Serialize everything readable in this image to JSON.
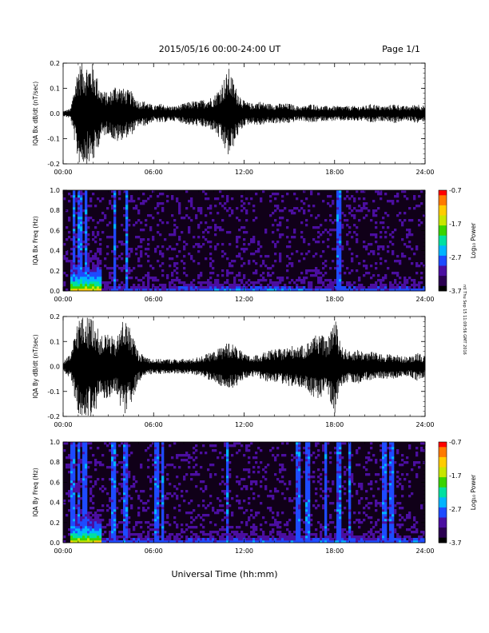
{
  "header": {
    "date_range": "2015/05/16  00:00-24:00 UT",
    "page": "Page 1/1"
  },
  "footer": {
    "xlabel": "Universal Time (hh:mm)"
  },
  "sidebar": {
    "stamp": "ntl Thu Sep 15 11:09:56 GMT 2016"
  },
  "colorbar": {
    "label": "Log₁₀ Power",
    "ticks": [
      "-0.7",
      "-1.7",
      "-2.7",
      "-3.7"
    ],
    "values": [
      -0.7,
      -1.7,
      -2.7,
      -3.7
    ],
    "range": [
      -3.7,
      -0.7
    ],
    "colors": [
      "#000000",
      "#2a0050",
      "#4b0ea0",
      "#1e4bff",
      "#00b4ff",
      "#00e0a0",
      "#3ad400",
      "#c8e600",
      "#ffcc00",
      "#ff7a00",
      "#ff0000"
    ]
  },
  "chart_data": [
    {
      "type": "line",
      "ylabel": "IQA Bx dB/dt (nT/sec)",
      "x_ticks": [
        "00:00",
        "06:00",
        "12:00",
        "18:00",
        "24:00"
      ],
      "y_ticks": [
        "0.2",
        "0.1",
        "0.0",
        "-0.1",
        "-0.2"
      ],
      "xlim": [
        0,
        24
      ],
      "ylim": [
        -0.2,
        0.2
      ],
      "series": [
        {
          "x": [
            0,
            0.5,
            1,
            1.5,
            2,
            2.5,
            3,
            3.5,
            4,
            4.5,
            5,
            5.5,
            6,
            6.5,
            7,
            7.5,
            8,
            8.5,
            9,
            9.5,
            10,
            10.5,
            11,
            11.5,
            12,
            12.5,
            13,
            13.5,
            14,
            14.5,
            15,
            15.5,
            16,
            16.5,
            17,
            17.5,
            18,
            18.5,
            19,
            19.5,
            20,
            20.5,
            21,
            21.5,
            22,
            22.5,
            23,
            23.5,
            24
          ],
          "values": [
            0.01,
            0.02,
            0.2,
            0.2,
            0.2,
            0.1,
            0.08,
            0.12,
            0.1,
            0.09,
            0.05,
            0.05,
            0.03,
            0.04,
            0.03,
            0.03,
            0.04,
            0.05,
            0.05,
            0.06,
            0.07,
            0.12,
            0.18,
            0.1,
            0.05,
            0.04,
            0.05,
            0.04,
            0.04,
            0.04,
            0.04,
            0.03,
            0.03,
            0.04,
            0.03,
            0.03,
            0.03,
            0.03,
            0.03,
            0.03,
            0.03,
            0.04,
            0.03,
            0.03,
            0.04,
            0.03,
            0.03,
            0.04,
            0.03
          ]
        }
      ]
    },
    {
      "type": "heatmap",
      "ylabel": "IQA Bx Freq (Hz)",
      "x_ticks": [
        "00:00",
        "06:00",
        "12:00",
        "18:00",
        "24:00"
      ],
      "y_ticks": [
        "1.0",
        "0.8",
        "0.6",
        "0.4",
        "0.2",
        "0.0"
      ],
      "xlim": [
        0,
        24
      ],
      "ylim": [
        0,
        1
      ],
      "zlim": [
        -3.7,
        -0.7
      ],
      "background_log_power": -3.4,
      "low_freq_enhancement": [
        {
          "x_range": [
            0.5,
            2.5
          ],
          "peak_log_power": -1.2
        },
        {
          "x_range": [
            2.5,
            9
          ],
          "peak_log_power": -2.8
        },
        {
          "x_range": [
            9,
            16
          ],
          "peak_log_power": -2.6
        },
        {
          "x_range": [
            16,
            24
          ],
          "peak_log_power": -2.7
        }
      ],
      "vertical_streaks_hours": [
        0.7,
        1.1,
        1.5,
        3.4,
        4.2,
        18.3
      ]
    },
    {
      "type": "line",
      "ylabel": "IQA By dB/dt (nT/sec)",
      "x_ticks": [
        "00:00",
        "06:00",
        "12:00",
        "18:00",
        "24:00"
      ],
      "y_ticks": [
        "0.2",
        "0.1",
        "0.0",
        "-0.1",
        "-0.2"
      ],
      "xlim": [
        0,
        24
      ],
      "ylim": [
        -0.2,
        0.2
      ],
      "series": [
        {
          "x": [
            0,
            0.5,
            1,
            1.5,
            2,
            2.5,
            3,
            3.5,
            4,
            4.5,
            5,
            5.5,
            6,
            6.5,
            7,
            7.5,
            8,
            8.5,
            9,
            9.5,
            10,
            10.5,
            11,
            11.5,
            12,
            12.5,
            13,
            13.5,
            14,
            14.5,
            15,
            15.5,
            16,
            16.5,
            17,
            17.5,
            18,
            18.5,
            19,
            19.5,
            20,
            20.5,
            21,
            21.5,
            22,
            22.5,
            23,
            23.5,
            24
          ],
          "values": [
            0.02,
            0.05,
            0.2,
            0.2,
            0.2,
            0.12,
            0.14,
            0.1,
            0.2,
            0.15,
            0.06,
            0.04,
            0.03,
            0.03,
            0.03,
            0.03,
            0.03,
            0.03,
            0.04,
            0.05,
            0.06,
            0.08,
            0.1,
            0.08,
            0.05,
            0.04,
            0.05,
            0.06,
            0.07,
            0.07,
            0.08,
            0.09,
            0.08,
            0.12,
            0.14,
            0.1,
            0.2,
            0.08,
            0.06,
            0.07,
            0.06,
            0.06,
            0.05,
            0.05,
            0.05,
            0.04,
            0.04,
            0.06,
            0.04
          ]
        }
      ]
    },
    {
      "type": "heatmap",
      "ylabel": "IQA By Freq (Hz)",
      "x_ticks": [
        "00:00",
        "06:00",
        "12:00",
        "18:00",
        "24:00"
      ],
      "y_ticks": [
        "1.0",
        "0.8",
        "0.6",
        "0.4",
        "0.2",
        "0.0"
      ],
      "xlim": [
        0,
        24
      ],
      "ylim": [
        0,
        1
      ],
      "zlim": [
        -3.7,
        -0.7
      ],
      "background_log_power": -3.4,
      "low_freq_enhancement": [
        {
          "x_range": [
            0.5,
            2.5
          ],
          "peak_log_power": -1.3
        },
        {
          "x_range": [
            2.5,
            9
          ],
          "peak_log_power": -2.7
        },
        {
          "x_range": [
            9,
            16
          ],
          "peak_log_power": -2.6
        },
        {
          "x_range": [
            16,
            24
          ],
          "peak_log_power": -2.6
        }
      ],
      "vertical_streaks_hours": [
        0.6,
        1.0,
        1.4,
        3.3,
        4.1,
        6.2,
        6.6,
        10.9,
        15.6,
        16.2,
        17.4,
        18.3,
        19.0,
        21.3,
        21.8
      ]
    }
  ]
}
